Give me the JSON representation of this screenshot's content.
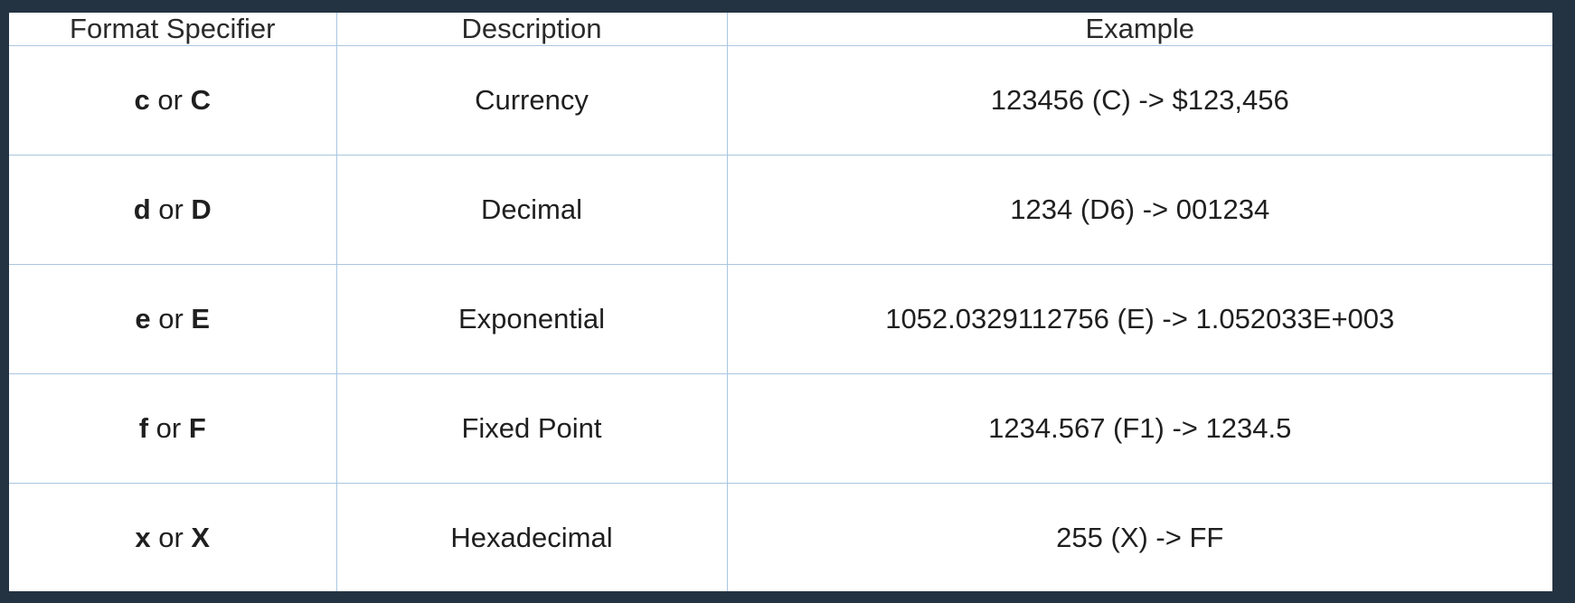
{
  "table": {
    "headers": [
      "Format Specifier",
      "Description",
      "Example"
    ],
    "rows": [
      {
        "lower": "c",
        "joiner": " or ",
        "upper": "C",
        "description": "Currency",
        "example": "123456 (C) -> $123,456"
      },
      {
        "lower": "d",
        "joiner": " or ",
        "upper": "D",
        "description": "Decimal",
        "example": "1234 (D6) -> 001234"
      },
      {
        "lower": "e",
        "joiner": " or ",
        "upper": "E",
        "description": "Exponential",
        "example": "1052.0329112756 (E) -> 1.052033E+003"
      },
      {
        "lower": "f",
        "joiner": " or ",
        "upper": "F",
        "description": "Fixed Point",
        "example": "1234.567 (F1) -> 1234.5"
      },
      {
        "lower": "x",
        "joiner": " or ",
        "upper": "X",
        "description": "Hexadecimal",
        "example": "255 (X) -> FF"
      }
    ]
  },
  "colors": {
    "background": "#243342",
    "panel": "#ffffff",
    "grid_line": "#a9c7e1",
    "text": "#1f1f1f"
  }
}
